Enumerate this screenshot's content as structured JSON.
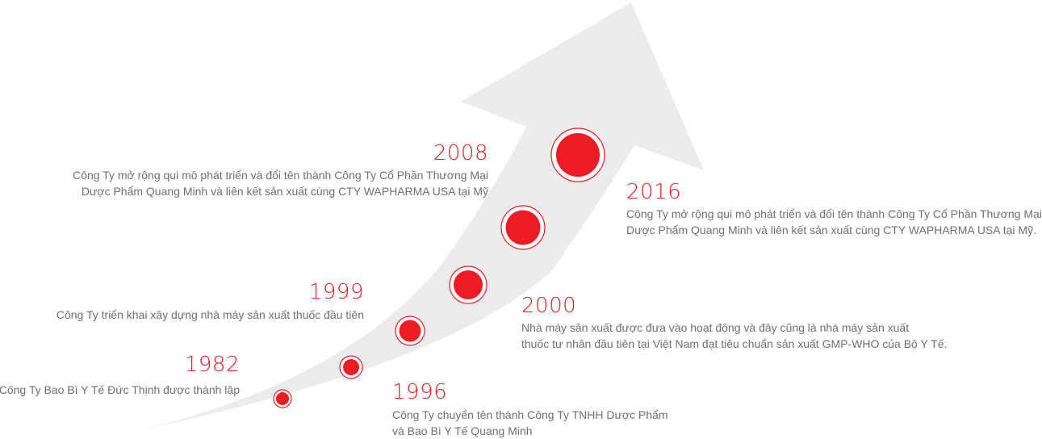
{
  "colors": {
    "accent": "#ed1c24",
    "arrow": "#ececec",
    "text": "#707070"
  },
  "milestones": [
    {
      "year": "1982",
      "lines": [
        "Công Ty Bao Bì Y Tế Đức Thịnh được thành lập"
      ]
    },
    {
      "year": "1996",
      "lines": [
        "Công Ty chuyển tên thành Công Ty TNHH Dược Phẩm",
        "và Bao Bì Y Tế Quang Minh"
      ]
    },
    {
      "year": "1999",
      "lines": [
        "Công Ty triển khai xây dựng nhà máy sản xuất thuốc đầu tiên"
      ]
    },
    {
      "year": "2000",
      "lines": [
        "Nhà máy sản xuất được đưa vào hoạt động và đây cũng là nhà máy sản xuất",
        "thuốc tư nhân đầu tiên tại Việt Nam đạt tiêu chuẩn sản xuất GMP-WHO của Bộ Y Tế."
      ]
    },
    {
      "year": "2008",
      "lines": [
        "Công Ty mở rộng qui mô phát triển và đổi tên thành Công Ty Cổ Phần Thương Mại",
        "Dược Phẩm Quang Minh và liên kết sản xuất cùng CTY WAPHARMA USA tại Mỹ"
      ]
    },
    {
      "year": "2016",
      "lines": [
        "Công Ty mở rộng qui mô phát triển và đổi tên thành Công Ty Cổ Phần Thương Mại",
        "Dược Phẩm Quang Minh và liên kết sản xuất cùng CTY WAPHARMA USA tại Mỹ."
      ]
    }
  ]
}
